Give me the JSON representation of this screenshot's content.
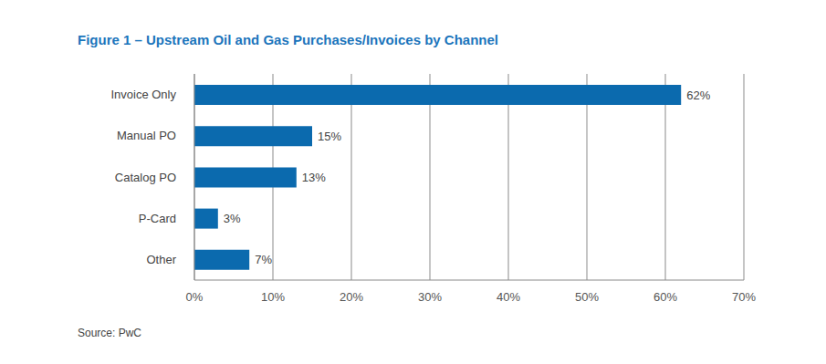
{
  "chart_data": {
    "type": "bar",
    "title": "Figure 1 – Upstream Oil and Gas Purchases/Invoices by Channel",
    "source": "Source: PwC",
    "orientation": "horizontal",
    "categories": [
      "Invoice Only",
      "Manual PO",
      "Catalog PO",
      "P-Card",
      "Other"
    ],
    "values": [
      62,
      15,
      13,
      3,
      7
    ],
    "value_labels": [
      "62%",
      "15%",
      "13%",
      "3%",
      "7%"
    ],
    "data_labels": true,
    "color": "#0b6aae",
    "xlim": [
      0,
      70
    ],
    "xticks": [
      {
        "value": 0,
        "label": "0%"
      },
      {
        "value": 10,
        "label": "10%"
      },
      {
        "value": 20,
        "label": "20%"
      },
      {
        "value": 30,
        "label": "30%"
      },
      {
        "value": 40,
        "label": "40%"
      },
      {
        "value": 50,
        "label": "50%"
      },
      {
        "value": 60,
        "label": "60%"
      },
      {
        "value": 70,
        "label": "70%"
      }
    ],
    "grid": true
  }
}
